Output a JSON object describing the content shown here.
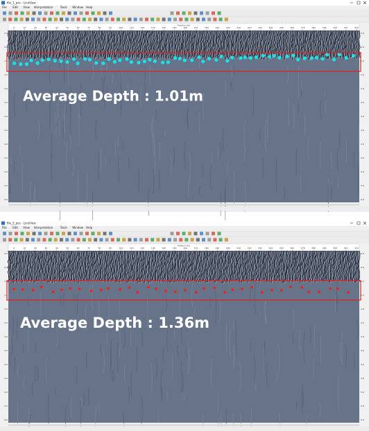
{
  "windows": [
    {
      "title": "file_1_pos - LineView",
      "menu": [
        "File",
        "Edit",
        "View",
        "Interpretation",
        "Tools",
        "Window",
        "Help"
      ],
      "ruler_label": "Position (m)",
      "x_ticks": [
        "0",
        "10",
        "20",
        "30",
        "40",
        "50",
        "60",
        "70",
        "80",
        "90",
        "100",
        "110",
        "120",
        "130",
        "140",
        "150",
        "160",
        "170",
        "180",
        "190",
        "200",
        "210",
        "220",
        "230",
        "240",
        "250",
        "260",
        "270",
        "280",
        "290",
        "300",
        "310",
        "320"
      ],
      "depth_ticks": [
        "0.0",
        "0.5",
        "1.0",
        "1.5",
        "2.0",
        "2.5",
        "3.0",
        "3.5",
        "4.0",
        "4.5",
        "5.0",
        "5.5",
        "6.0"
      ],
      "annotation": "Average Depth : 1.01m"
    },
    {
      "title": "file_2_pos - LineView",
      "menu": [
        "File",
        "Edit",
        "View",
        "Interpretation",
        "Tools",
        "Window",
        "Help"
      ],
      "ruler_label": "Position (m)",
      "x_ticks": [
        "0",
        "10",
        "20",
        "30",
        "40",
        "50",
        "60",
        "70",
        "80",
        "90",
        "100",
        "110",
        "120",
        "130",
        "140",
        "150",
        "160",
        "170",
        "180",
        "190",
        "200",
        "210",
        "220",
        "230",
        "240",
        "250",
        "260",
        "270",
        "280",
        "290",
        "300",
        "310",
        "320"
      ],
      "depth_ticks": [
        "0.0",
        "0.5",
        "1.0",
        "1.5",
        "2.0",
        "2.5",
        "3.0",
        "3.5",
        "4.0",
        "4.5",
        "5.0",
        "5.5",
        "6.0"
      ],
      "annotation": "Average Depth : 1.36m"
    }
  ]
}
